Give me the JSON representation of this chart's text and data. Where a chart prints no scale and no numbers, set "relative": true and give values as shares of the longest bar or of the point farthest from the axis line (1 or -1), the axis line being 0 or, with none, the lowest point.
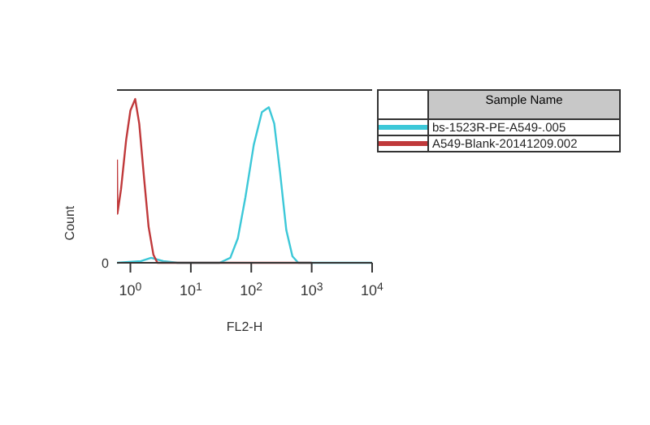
{
  "chart_data": {
    "type": "line",
    "xlabel": "FL2-H",
    "ylabel": "Count",
    "legend_title": "Sample Name",
    "relative": true,
    "log": "x",
    "legend": "right",
    "marker": "none",
    "xlim": [
      0.6,
      10000
    ],
    "xticks": [
      {
        "value": 1,
        "label": "10$^{0}$"
      },
      {
        "value": 10,
        "label": "10$^{1}$"
      },
      {
        "value": 100,
        "label": "10$^{2}$"
      },
      {
        "value": 1000,
        "label": "10$^{3}$"
      },
      {
        "value": 10000,
        "label": "10$^{4}$"
      }
    ],
    "annotations": [
      "0"
    ],
    "series": [
      {
        "name": "bs-1523R-PE-A549-.005",
        "color": "#3cc8d8",
        "x": [
          0.6,
          1.5,
          2.2,
          3.5,
          6,
          30,
          45,
          60,
          80,
          110,
          150,
          195,
          240,
          300,
          380,
          480,
          600,
          10000
        ],
        "values": [
          0,
          0.01,
          0.03,
          0.01,
          0,
          0,
          0.03,
          0.15,
          0.4,
          0.72,
          0.92,
          0.95,
          0.85,
          0.55,
          0.2,
          0.04,
          0,
          0
        ]
      },
      {
        "name": "A549-Blank-20141209.002",
        "color": "#c0393b",
        "x": [
          0.6,
          0.61,
          0.7,
          0.85,
          1.0,
          1.2,
          1.4,
          1.7,
          2.0,
          2.4,
          2.8,
          1000
        ],
        "values": [
          0.63,
          0.3,
          0.45,
          0.75,
          0.93,
          1,
          0.85,
          0.5,
          0.22,
          0.05,
          0,
          0
        ]
      }
    ]
  }
}
